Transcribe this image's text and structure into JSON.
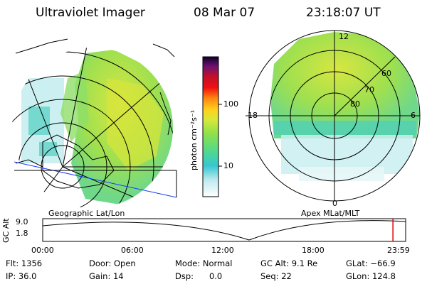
{
  "header": {
    "instrument": "Ultraviolet Imager",
    "date": "08 Mar 07",
    "time": "23:18:07 UT"
  },
  "left_panel": {
    "label": "Geographic Lat/Lon"
  },
  "right_panel": {
    "label": "Apex MLat/MLT",
    "mlt_labels": [
      "12",
      "18",
      "6",
      "0"
    ],
    "lat_labels": [
      "60",
      "70",
      "80"
    ]
  },
  "colorbar": {
    "label": "photon cm⁻²s⁻¹",
    "ticks": [
      "100",
      "10"
    ]
  },
  "timeline": {
    "axis_label": "GC Alt",
    "y_ticks": [
      "9.0",
      "1.8"
    ],
    "x_ticks": [
      "00:00",
      "06:00",
      "12:00",
      "18:00",
      "23:59"
    ],
    "current_fraction": 0.965,
    "marker_color": "#dd0000"
  },
  "info": {
    "flt": "Flt: 1356",
    "ip": "IP: 36.0",
    "door": "Door: Open",
    "gain": "Gain: 14",
    "mode": "Mode: Normal",
    "dsp": "Dsp:      0.0",
    "gcalt": "GC Alt: 9.1 Re",
    "seq": "Seq: 22",
    "glat": "GLat: −66.9",
    "glon": "GLon: 124.8"
  }
}
